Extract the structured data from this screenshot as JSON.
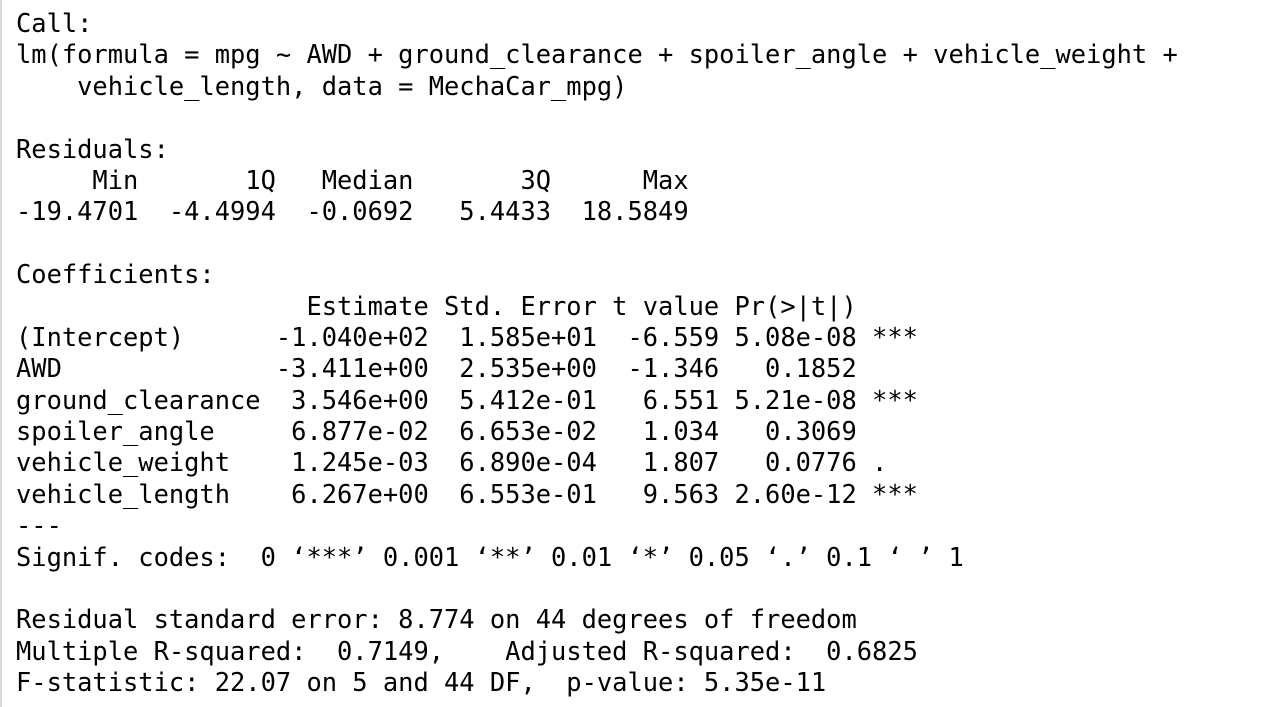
{
  "console": {
    "lines": [
      "Call:",
      "lm(formula = mpg ~ AWD + ground_clearance + spoiler_angle + vehicle_weight + ",
      "    vehicle_length, data = MechaCar_mpg)",
      "",
      "Residuals:",
      "     Min       1Q   Median       3Q      Max ",
      "-19.4701  -4.4994  -0.0692   5.4433  18.5849 ",
      "",
      "Coefficients:",
      "                   Estimate Std. Error t value Pr(>|t|)    ",
      "(Intercept)      -1.040e+02  1.585e+01  -6.559 5.08e-08 ***",
      "AWD              -3.411e+00  2.535e+00  -1.346   0.1852    ",
      "ground_clearance  3.546e+00  5.412e-01   6.551 5.21e-08 ***",
      "spoiler_angle     6.877e-02  6.653e-02   1.034   0.3069    ",
      "vehicle_weight    1.245e-03  6.890e-04   1.807   0.0776 .  ",
      "vehicle_length    6.267e+00  6.553e-01   9.563 2.60e-12 ***",
      "---",
      "Signif. codes:  0 ‘***’ 0.001 ‘**’ 0.01 ‘*’ 0.05 ‘.’ 0.1 ‘ ’ 1",
      "",
      "Residual standard error: 8.774 on 44 degrees of freedom",
      "Multiple R-squared:  0.7149,\tAdjusted R-squared:  0.6825 ",
      "F-statistic: 22.07 on 5 and 44 DF,  p-value: 5.35e-11"
    ]
  }
}
